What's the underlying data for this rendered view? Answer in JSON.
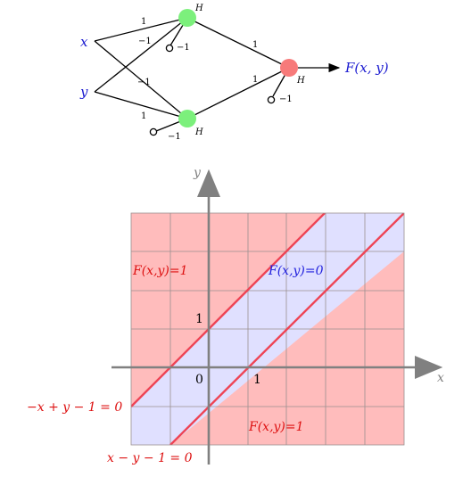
{
  "network": {
    "input_x": "x",
    "input_y": "y",
    "hidden_label_top": "H",
    "hidden_label_bottom": "H",
    "output_label": "H",
    "output_text": "F(x, y)",
    "w_x_top": "1",
    "w_x_bottom": "−1",
    "w_y_top": "−1",
    "w_y_bottom": "1",
    "bias_top": "−1",
    "bias_bottom": "−1",
    "w_top_out": "1",
    "w_bottom_out": "1",
    "bias_out": "−1",
    "colors": {
      "hidden_node": "#7cf07c",
      "output_node": "#f77a7a",
      "input_text": "#1a1ad0",
      "output_text": "#1a1ad0"
    }
  },
  "plot": {
    "x_axis_label": "x",
    "y_axis_label": "y",
    "tick_origin": "0",
    "tick_x1": "1",
    "tick_y1": "1",
    "region_top_left": "F(x,y)=1",
    "region_middle": "F(x,y)=0",
    "region_bottom_right": "F(x,y)=1",
    "line1_label": "−x + y − 1 = 0",
    "line2_label": "x − y − 1 = 0",
    "xlim": [
      -2,
      5
    ],
    "ylim": [
      -2,
      4
    ],
    "colors": {
      "region_one": "#ffbcbc",
      "region_zero": "#e0e0ff",
      "line": "#ee4455",
      "grid": "#9a8f8f",
      "axis": "#808080",
      "label_red": "#dd1111",
      "label_blue": "#2222dd"
    }
  }
}
